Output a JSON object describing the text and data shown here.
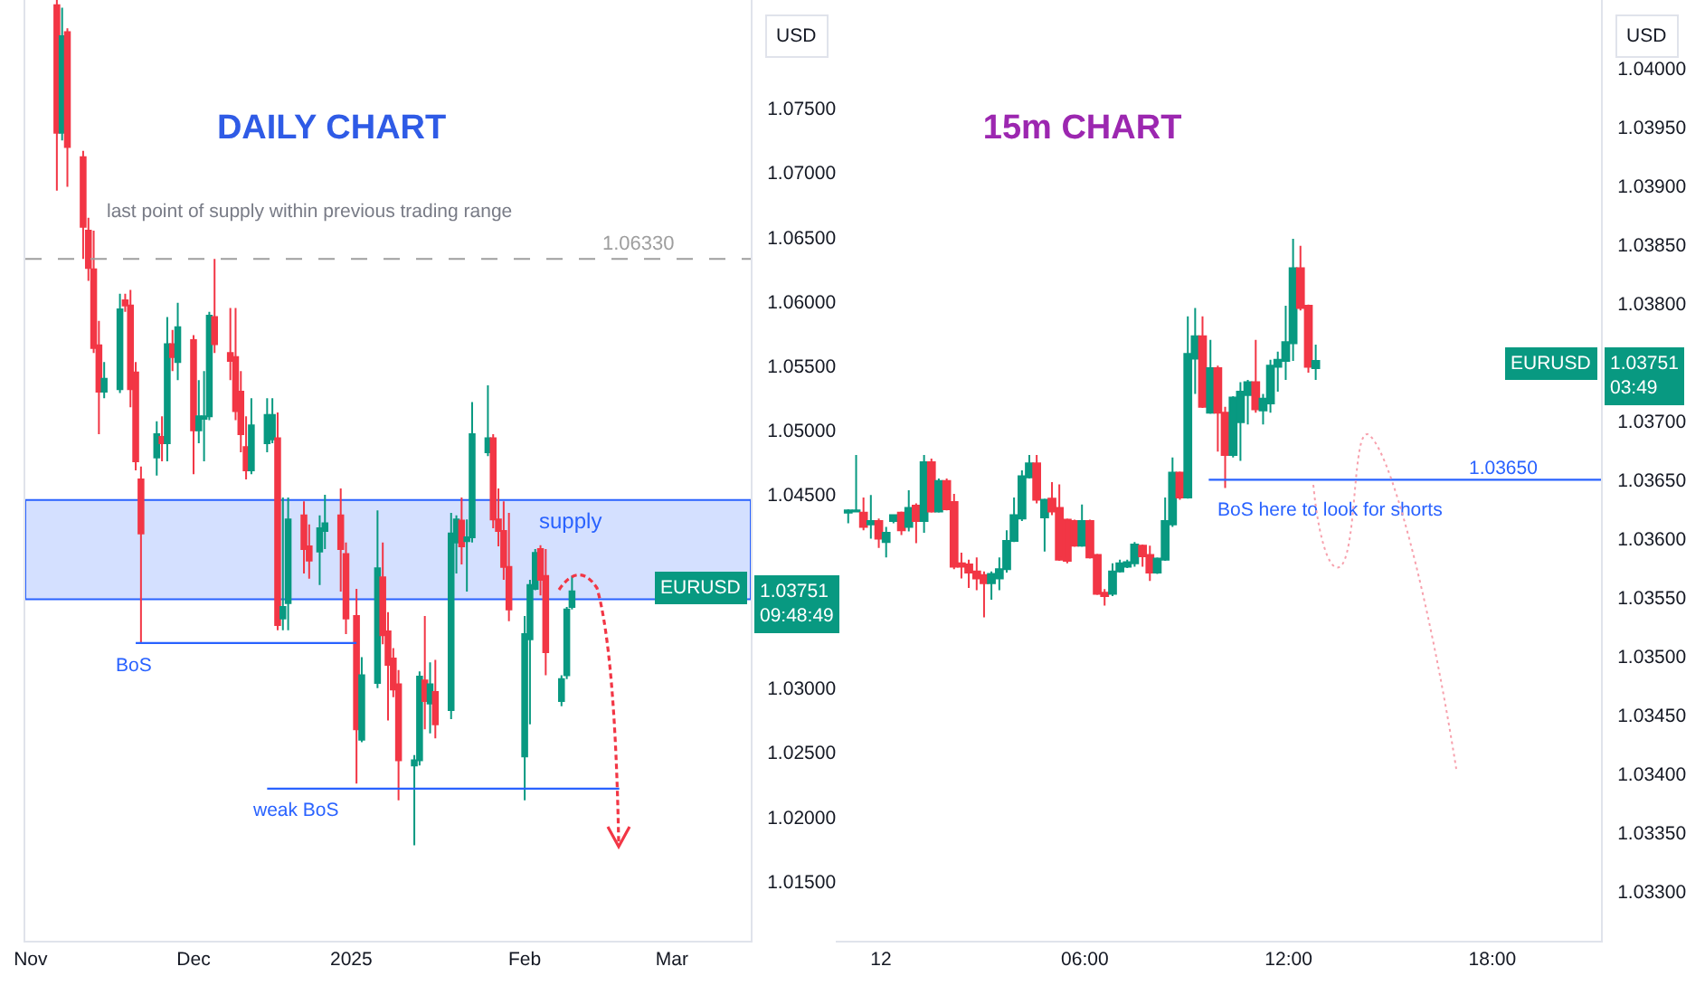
{
  "chart_data": [
    {
      "type": "candlestick",
      "title": "DAILY CHART",
      "ylabel": "USD",
      "x": [
        "2024-11-06",
        "2024-11-07",
        "2024-11-08",
        "2024-11-11",
        "2024-11-12",
        "2024-11-13",
        "2024-11-14",
        "2024-11-15",
        "2024-11-18",
        "2024-11-19",
        "2024-11-20",
        "2024-11-21",
        "2024-11-22",
        "2024-11-25",
        "2024-11-26",
        "2024-11-27",
        "2024-11-28",
        "2024-11-29",
        "2024-12-02",
        "2024-12-03",
        "2024-12-04",
        "2024-12-05",
        "2024-12-06",
        "2024-12-09",
        "2024-12-10",
        "2024-12-11",
        "2024-12-12",
        "2024-12-13",
        "2024-12-16",
        "2024-12-17",
        "2024-12-18",
        "2024-12-19",
        "2024-12-20",
        "2024-12-23",
        "2024-12-24",
        "2024-12-26",
        "2024-12-27",
        "2024-12-30",
        "2024-12-31",
        "2025-01-02",
        "2025-01-03",
        "2025-01-06",
        "2025-01-07",
        "2025-01-08",
        "2025-01-09",
        "2025-01-10",
        "2025-01-13",
        "2025-01-14",
        "2025-01-15",
        "2025-01-16",
        "2025-01-17",
        "2025-01-20",
        "2025-01-21",
        "2025-01-22",
        "2025-01-23",
        "2025-01-24",
        "2025-01-27",
        "2025-01-28",
        "2025-01-29",
        "2025-01-30",
        "2025-01-31",
        "2025-02-03",
        "2025-02-04",
        "2025-02-05",
        "2025-02-06",
        "2025-02-07",
        "2025-02-10",
        "2025-02-11",
        "2025-02-12"
      ],
      "ohlc": [
        [
          1.083,
          1.0834,
          1.0686,
          1.0731
        ],
        [
          1.0731,
          1.0828,
          1.0725,
          1.0806
        ],
        [
          1.0809,
          1.0812,
          1.0689,
          1.072
        ],
        [
          1.0712,
          1.0717,
          1.0633,
          1.0658
        ],
        [
          1.0655,
          1.0665,
          1.0616,
          1.0626
        ],
        [
          1.0625,
          1.0655,
          1.056,
          1.0564
        ],
        [
          1.0566,
          1.0585,
          1.0497,
          1.053
        ],
        [
          1.053,
          1.0553,
          1.0525,
          1.054
        ],
        [
          1.0532,
          1.0606,
          1.0529,
          1.0594
        ],
        [
          1.0601,
          1.0606,
          1.0592,
          1.0597
        ],
        [
          1.0597,
          1.0609,
          1.0518,
          1.0532
        ],
        [
          1.0545,
          1.0553,
          1.0469,
          1.0476
        ],
        [
          1.0462,
          1.0472,
          1.0335,
          1.042
        ],
        [
          1.0479,
          1.0507,
          1.0465,
          1.0497
        ],
        [
          1.0495,
          1.0511,
          1.0476,
          1.049
        ],
        [
          1.049,
          1.0588,
          1.0476,
          1.0567
        ],
        [
          1.0567,
          1.0578,
          1.0546,
          1.0557
        ],
        [
          1.0553,
          1.0599,
          1.0539,
          1.058
        ],
        [
          1.057,
          1.0574,
          1.0466,
          1.05
        ],
        [
          1.05,
          1.0539,
          1.049,
          1.0511
        ],
        [
          1.0509,
          1.0546,
          1.0476,
          1.0511
        ],
        [
          1.0511,
          1.0592,
          1.0508,
          1.0589
        ],
        [
          1.0588,
          1.0633,
          1.056,
          1.0567
        ],
        [
          1.056,
          1.0595,
          1.0539,
          1.0554
        ],
        [
          1.0557,
          1.0595,
          1.0508,
          1.0515
        ],
        [
          1.053,
          1.0546,
          1.0483,
          1.0497
        ],
        [
          1.0487,
          1.0511,
          1.0462,
          1.0469
        ],
        [
          1.0469,
          1.0525,
          1.0466,
          1.0504
        ],
        [
          1.049,
          1.0525,
          1.0483,
          1.0512
        ],
        [
          1.0493,
          1.0525,
          1.049,
          1.0512
        ],
        [
          1.0494,
          1.0514,
          1.0345,
          1.0349
        ],
        [
          1.0354,
          1.0448,
          1.0345,
          1.0363
        ],
        [
          1.0366,
          1.0448,
          1.0345,
          1.0431
        ],
        [
          1.0434,
          1.0445,
          1.0389,
          1.0408
        ],
        [
          1.041,
          1.0427,
          1.0385,
          1.0399
        ],
        [
          1.0406,
          1.0434,
          1.038,
          1.0424
        ],
        [
          1.0422,
          1.045,
          1.0408,
          1.0428
        ],
        [
          1.0434,
          1.0455,
          1.0375,
          1.0408
        ],
        [
          1.0404,
          1.0413,
          1.0342,
          1.0354
        ],
        [
          1.0356,
          1.0377,
          1.0226,
          1.0268
        ],
        [
          1.026,
          1.0324,
          1.0258,
          1.031
        ],
        [
          1.0304,
          1.0438,
          1.03,
          1.0393
        ],
        [
          1.0386,
          1.0413,
          1.0334,
          1.0341
        ],
        [
          1.0344,
          1.0359,
          1.0275,
          1.0318
        ],
        [
          1.0323,
          1.0331,
          1.0293,
          1.0299
        ],
        [
          1.0303,
          1.0314,
          1.0213,
          1.0244
        ],
        [
          1.024,
          1.0248,
          1.0178,
          1.0244
        ],
        [
          1.0244,
          1.0313,
          1.024,
          1.0309
        ],
        [
          1.0306,
          1.0356,
          1.0268,
          1.029
        ],
        [
          1.0288,
          1.032,
          1.0265,
          1.0303
        ],
        [
          1.0297,
          1.0322,
          1.0261,
          1.0272
        ],
        [
          1.0283,
          1.0436,
          1.0276,
          1.042
        ],
        [
          1.0413,
          1.0434,
          1.0389,
          1.0431
        ],
        [
          1.043,
          1.0448,
          1.0396,
          1.041
        ],
        [
          1.0414,
          1.0431,
          1.0375,
          1.0417
        ],
        [
          1.0417,
          1.0522,
          1.0413,
          1.0497
        ],
        [
          1.0483,
          1.0535,
          1.048,
          1.0494
        ],
        [
          1.0494,
          1.0497,
          1.0424,
          1.0431
        ],
        [
          1.0431,
          1.0455,
          1.041,
          1.0422
        ],
        [
          1.0422,
          1.0445,
          1.0384,
          1.0394
        ],
        [
          1.0394,
          1.0436,
          1.0352,
          1.0361
        ],
        [
          1.0247,
          1.0356,
          1.0213,
          1.0342
        ],
        [
          1.0338,
          1.0384,
          1.0272,
          1.038
        ],
        [
          1.0377,
          1.0408,
          1.0376,
          1.0405
        ],
        [
          1.0408,
          1.0411,
          1.0372,
          1.0384
        ],
        [
          1.0387,
          1.0408,
          1.031,
          1.0328
        ],
        [
          1.029,
          1.031,
          1.0286,
          1.0307
        ],
        [
          1.031,
          1.0363,
          1.0307,
          1.0361
        ],
        [
          1.0363,
          1.0387,
          1.0361,
          1.03751
        ]
      ],
      "colors": [
        "#f23645",
        "#089981",
        "#f23645",
        "#f23645",
        "#f23645",
        "#f23645",
        "#f23645",
        "#089981",
        "#089981",
        "#f23645",
        "#f23645",
        "#f23645",
        "#f23645",
        "#089981",
        "#f23645",
        "#089981",
        "#f23645",
        "#089981",
        "#f23645",
        "#089981",
        "#089981",
        "#089981",
        "#f23645",
        "#f23645",
        "#f23645",
        "#f23645",
        "#f23645",
        "#089981",
        "#089981",
        "#089981",
        "#f23645",
        "#089981",
        "#089981",
        "#f23645",
        "#f23645",
        "#089981",
        "#089981",
        "#f23645",
        "#f23645",
        "#f23645",
        "#089981",
        "#089981",
        "#f23645",
        "#f23645",
        "#f23645",
        "#f23645",
        "#089981",
        "#089981",
        "#f23645",
        "#089981",
        "#f23645",
        "#089981",
        "#089981",
        "#f23645",
        "#089981",
        "#089981",
        "#089981",
        "#f23645",
        "#f23645",
        "#f23645",
        "#f23645",
        "#089981",
        "#089981",
        "#089981",
        "#f23645",
        "#f23645",
        "#089981",
        "#089981",
        "#089981"
      ],
      "series": [
        {
          "type": "line",
          "x": [
            "2024-11-21",
            "2025-01-02"
          ],
          "values": [
            1.0335,
            1.0335
          ],
          "color": "#2962ff"
        },
        {
          "type": "line",
          "x": [
            "2024-12-16",
            "2025-02-21"
          ],
          "values": [
            1.0222,
            1.0222
          ],
          "color": "#2962ff"
        }
      ],
      "xlim": [
        "2024-10-31",
        "2025-03-18"
      ],
      "xticks": [
        {
          "value": "2024-11-01",
          "label": "Nov"
        },
        {
          "value": "2024-12-02",
          "label": "Dec"
        },
        {
          "value": "2025-01-01",
          "label": "2025"
        },
        {
          "value": "2025-02-03",
          "label": "Feb"
        },
        {
          "value": "2025-03-03",
          "label": "Mar"
        }
      ],
      "ylim": [
        1.0104,
        1.0834
      ],
      "yticks": [
        {
          "value": 1.015,
          "label": "1.01500"
        },
        {
          "value": 1.02,
          "label": "1.02000"
        },
        {
          "value": 1.025,
          "label": "1.02500"
        },
        {
          "value": 1.03,
          "label": "1.03000"
        },
        {
          "value": 1.045,
          "label": "1.04500"
        },
        {
          "value": 1.05,
          "label": "1.05000"
        },
        {
          "value": 1.055,
          "label": "1.05500"
        },
        {
          "value": 1.06,
          "label": "1.06000"
        },
        {
          "value": 1.065,
          "label": "1.06500"
        },
        {
          "value": 1.07,
          "label": "1.07000"
        },
        {
          "value": 1.075,
          "label": "1.07500"
        }
      ],
      "ref_lines": [
        {
          "axis": "y",
          "value": 1.0633,
          "label": "1.06330",
          "color": "#9e9e9e",
          "line_style": "dashed"
        }
      ],
      "bands": [
        {
          "axis": "y",
          "from": 1.0369,
          "to": 1.0446,
          "label": "supply",
          "color": "#2962ff"
        }
      ],
      "annotations": [
        "last point of supply within previous trading range",
        "BoS",
        "weak BoS",
        "EURUSD",
        "1.03751\n09:48:49"
      ]
    },
    {
      "type": "candlestick",
      "title": "15m CHART",
      "ylabel": "USD",
      "x": [
        "--02-11T23:02",
        "--02-11T23:16",
        "--02-11T23:29",
        "--02-11T23:42",
        "--02-11T23:56",
        "--02-12T00:09",
        "--02-12T00:22",
        "--02-12T00:36",
        "--02-12T00:49",
        "--02-12T01:02",
        "--02-12T01:16",
        "--02-12T01:29",
        "--02-12T01:42",
        "--02-12T01:56",
        "--02-12T02:09",
        "--02-12T02:22",
        "--02-12T02:35",
        "--02-12T02:49",
        "--02-12T03:02",
        "--02-12T03:15",
        "--02-12T03:29",
        "--02-12T03:42",
        "--02-12T03:55",
        "--02-12T04:09",
        "--02-12T04:22",
        "--02-12T04:35",
        "--02-12T04:49",
        "--02-12T05:02",
        "--02-12T05:15",
        "--02-12T05:29",
        "--02-12T05:42",
        "--02-12T05:55",
        "--02-12T06:09",
        "--02-12T06:22",
        "--02-12T06:35",
        "--02-12T06:49",
        "--02-12T07:02",
        "--02-12T07:15",
        "--02-12T07:28",
        "--02-12T07:42",
        "--02-12T07:55",
        "--02-12T08:08",
        "--02-12T08:22",
        "--02-12T08:35",
        "--02-12T08:48",
        "--02-12T09:02",
        "--02-12T09:15",
        "--02-12T09:28",
        "--02-12T09:42",
        "--02-12T09:55",
        "--02-12T10:08",
        "--02-12T10:22",
        "--02-12T10:35",
        "--02-12T10:48",
        "--02-12T11:02",
        "--02-12T11:15",
        "--02-12T11:28",
        "--02-12T11:41",
        "--02-12T11:55",
        "--02-12T12:08",
        "--02-12T12:21",
        "--02-12T12:35",
        "--02-12T12:48"
      ],
      "ohlc": [
        [
          1.03622,
          1.03625,
          1.03613,
          1.03624
        ],
        [
          1.03623,
          1.03671,
          1.03623,
          1.03624
        ],
        [
          1.03622,
          1.03635,
          1.03607,
          1.0361
        ],
        [
          1.03612,
          1.03637,
          1.036,
          1.03615
        ],
        [
          1.03615,
          1.03617,
          1.03592,
          1.036
        ],
        [
          1.03597,
          1.0361,
          1.03584,
          1.03605
        ],
        [
          1.03615,
          1.0362,
          1.03613,
          1.0362
        ],
        [
          1.03622,
          1.03623,
          1.03603,
          1.03607
        ],
        [
          1.0361,
          1.03641,
          1.03606,
          1.03626
        ],
        [
          1.03628,
          1.0363,
          1.03596,
          1.03615
        ],
        [
          1.03615,
          1.03671,
          1.03605,
          1.03665
        ],
        [
          1.03665,
          1.03668,
          1.03622,
          1.03623
        ],
        [
          1.03623,
          1.03651,
          1.03622,
          1.03649
        ],
        [
          1.03649,
          1.03651,
          1.03624,
          1.03625
        ],
        [
          1.03631,
          1.03638,
          1.03574,
          1.03576
        ],
        [
          1.03579,
          1.03588,
          1.03566,
          1.03576
        ],
        [
          1.03578,
          1.03582,
          1.03558,
          1.03571
        ],
        [
          1.03572,
          1.03584,
          1.03556,
          1.03566
        ],
        [
          1.03569,
          1.03572,
          1.03533,
          1.03562
        ],
        [
          1.03562,
          1.03572,
          1.03548,
          1.0357
        ],
        [
          1.03566,
          1.03584,
          1.03556,
          1.03574
        ],
        [
          1.03574,
          1.03607,
          1.03571,
          1.03598
        ],
        [
          1.03598,
          1.03635,
          1.03597,
          1.0362
        ],
        [
          1.03617,
          1.03658,
          1.03615,
          1.03653
        ],
        [
          1.03652,
          1.03671,
          1.03651,
          1.03664
        ],
        [
          1.03664,
          1.03671,
          1.0363,
          1.03633
        ],
        [
          1.03618,
          1.03634,
          1.03589,
          1.03633
        ],
        [
          1.03634,
          1.03648,
          1.0362,
          1.03623
        ],
        [
          1.03626,
          1.03646,
          1.03581,
          1.03582
        ],
        [
          1.03616,
          1.03617,
          1.03579,
          1.03581
        ],
        [
          1.03615,
          1.03616,
          1.03593,
          1.03594
        ],
        [
          1.03594,
          1.03629,
          1.03593,
          1.03615
        ],
        [
          1.03615,
          1.03616,
          1.03583,
          1.03584
        ],
        [
          1.03586,
          1.03587,
          1.03552,
          1.03553
        ],
        [
          1.03554,
          1.03557,
          1.03543,
          1.03551
        ],
        [
          1.03553,
          1.03579,
          1.03551,
          1.03572
        ],
        [
          1.03572,
          1.03582,
          1.03571,
          1.03579
        ],
        [
          1.03576,
          1.03582,
          1.03575,
          1.0358
        ],
        [
          1.03579,
          1.03597,
          1.03576,
          1.03595
        ],
        [
          1.03594,
          1.03595,
          1.03576,
          1.03585
        ],
        [
          1.03586,
          1.03594,
          1.03564,
          1.03571
        ],
        [
          1.03571,
          1.03584,
          1.0357,
          1.03583
        ],
        [
          1.03582,
          1.03635,
          1.03581,
          1.03615
        ],
        [
          1.03612,
          1.03669,
          1.0361,
          1.03656
        ],
        [
          1.03656,
          1.03657,
          1.03633,
          1.03635
        ],
        [
          1.03635,
          1.03789,
          1.03634,
          1.03757
        ],
        [
          1.03753,
          1.03796,
          1.03723,
          1.03772
        ],
        [
          1.03772,
          1.03789,
          1.03711,
          1.03712
        ],
        [
          1.03707,
          1.03769,
          1.03706,
          1.03745
        ],
        [
          1.03745,
          1.03747,
          1.03674,
          1.03707
        ],
        [
          1.03707,
          1.03712,
          1.03643,
          1.03671
        ],
        [
          1.03671,
          1.03721,
          1.03669,
          1.0372
        ],
        [
          1.03699,
          1.03733,
          1.03666,
          1.03725
        ],
        [
          1.03722,
          1.03735,
          1.03697,
          1.03733
        ],
        [
          1.03733,
          1.03769,
          1.03707,
          1.0371
        ],
        [
          1.03709,
          1.03723,
          1.03697,
          1.03719
        ],
        [
          1.03715,
          1.03752,
          1.03707,
          1.03747
        ],
        [
          1.03746,
          1.03759,
          1.03725,
          1.03752
        ],
        [
          1.03751,
          1.03798,
          1.03735,
          1.03767
        ],
        [
          1.03766,
          1.03855,
          1.03751,
          1.0383
        ],
        [
          1.0383,
          1.03849,
          1.03794,
          1.03796
        ],
        [
          1.03798,
          1.03799,
          1.03741,
          1.03746
        ],
        [
          1.03745,
          1.03765,
          1.03735,
          1.03751
        ]
      ],
      "colors": [
        "#089981",
        "#089981",
        "#f23645",
        "#089981",
        "#f23645",
        "#089981",
        "#089981",
        "#f23645",
        "#089981",
        "#f23645",
        "#089981",
        "#f23645",
        "#089981",
        "#f23645",
        "#f23645",
        "#f23645",
        "#f23645",
        "#f23645",
        "#f23645",
        "#089981",
        "#089981",
        "#089981",
        "#089981",
        "#089981",
        "#089981",
        "#f23645",
        "#089981",
        "#f23645",
        "#f23645",
        "#f23645",
        "#f23645",
        "#089981",
        "#f23645",
        "#f23645",
        "#f23645",
        "#089981",
        "#089981",
        "#089981",
        "#089981",
        "#f23645",
        "#f23645",
        "#089981",
        "#089981",
        "#089981",
        "#f23645",
        "#089981",
        "#089981",
        "#f23645",
        "#089981",
        "#f23645",
        "#f23645",
        "#089981",
        "#089981",
        "#089981",
        "#f23645",
        "#089981",
        "#089981",
        "#089981",
        "#089981",
        "#089981",
        "#f23645",
        "#f23645",
        "#089981"
      ],
      "series": [
        {
          "type": "line",
          "x": [
            "--02-12T09:39",
            "--02-12T21:12"
          ],
          "values": [
            1.0365,
            1.0365
          ],
          "color": "#2962ff"
        }
      ],
      "xlim": [
        "--02-11T22:40",
        "--02-12T21:12"
      ],
      "xticks": [
        {
          "value": "--02-12T00:00",
          "label": "12"
        },
        {
          "value": "--02-12T06:00",
          "label": "06:00"
        },
        {
          "value": "--02-12T12:00",
          "label": "12:00"
        },
        {
          "value": "--02-12T18:00",
          "label": "18:00"
        }
      ],
      "ylim": [
        1.03258,
        1.04058
      ],
      "yticks": [
        {
          "value": 1.033,
          "label": "1.03300"
        },
        {
          "value": 1.0335,
          "label": "1.03350"
        },
        {
          "value": 1.034,
          "label": "1.03400"
        },
        {
          "value": 1.0345,
          "label": "1.03450"
        },
        {
          "value": 1.035,
          "label": "1.03500"
        },
        {
          "value": 1.0355,
          "label": "1.03550"
        },
        {
          "value": 1.036,
          "label": "1.03600"
        },
        {
          "value": 1.0365,
          "label": "1.03650"
        },
        {
          "value": 1.037,
          "label": "1.03700"
        },
        {
          "value": 1.038,
          "label": "1.03800"
        },
        {
          "value": 1.0385,
          "label": "1.03850"
        },
        {
          "value": 1.039,
          "label": "1.03900"
        },
        {
          "value": 1.0395,
          "label": "1.03950"
        },
        {
          "value": 1.04,
          "label": "1.04000"
        }
      ],
      "annotations": [
        "1.03650",
        "BoS here to look for shorts",
        "EURUSD",
        "1.03751\n03:49"
      ]
    }
  ]
}
